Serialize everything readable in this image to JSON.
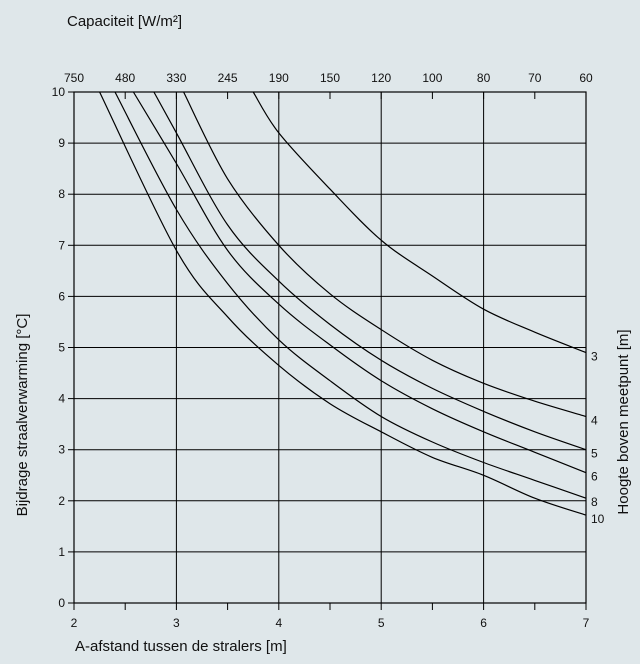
{
  "chart_data": {
    "type": "line",
    "title": "Capaciteit [W/m²]",
    "xlabel": "A-afstand tussen de stralers [m]",
    "ylabel": "Bijdrage straalverwarming [°C]",
    "ylabel_right": "Hoogte boven meetpunt [m]",
    "xlim": [
      2,
      7
    ],
    "ylim": [
      0,
      10
    ],
    "x_ticks": [
      "2",
      "3",
      "4",
      "5",
      "6",
      "7"
    ],
    "y_ticks": [
      "0",
      "1",
      "2",
      "3",
      "4",
      "5",
      "6",
      "7",
      "8",
      "9",
      "10"
    ],
    "top_axis": {
      "ticks": [
        {
          "label": "750",
          "x": 2.0
        },
        {
          "label": "480",
          "x": 2.5
        },
        {
          "label": "330",
          "x": 3.0
        },
        {
          "label": "245",
          "x": 3.5
        },
        {
          "label": "190",
          "x": 4.0
        },
        {
          "label": "150",
          "x": 4.5
        },
        {
          "label": "120",
          "x": 5.0
        },
        {
          "label": "100",
          "x": 5.5
        },
        {
          "label": "80",
          "x": 6.0
        },
        {
          "label": "70",
          "x": 6.5
        },
        {
          "label": "60",
          "x": 7.0
        }
      ]
    },
    "grid": true,
    "series": [
      {
        "name": "3",
        "x": [
          3.75,
          4.0,
          4.5,
          5.0,
          5.5,
          6.0,
          6.5,
          7.0
        ],
        "y": [
          10.0,
          9.2,
          8.1,
          7.1,
          6.4,
          5.75,
          5.3,
          4.9
        ]
      },
      {
        "name": "4",
        "x": [
          3.07,
          3.5,
          4.0,
          4.5,
          5.0,
          5.5,
          6.0,
          6.5,
          7.0
        ],
        "y": [
          10.0,
          8.3,
          7.0,
          6.05,
          5.35,
          4.75,
          4.3,
          3.95,
          3.65
        ]
      },
      {
        "name": "5",
        "x": [
          2.78,
          3.0,
          3.5,
          4.0,
          4.5,
          5.0,
          5.5,
          6.0,
          6.5,
          7.0
        ],
        "y": [
          10.0,
          9.2,
          7.4,
          6.3,
          5.45,
          4.75,
          4.2,
          3.75,
          3.35,
          3.0
        ]
      },
      {
        "name": "6",
        "x": [
          2.58,
          3.0,
          3.5,
          4.0,
          4.5,
          5.0,
          5.5,
          6.0,
          6.5,
          7.0
        ],
        "y": [
          10.0,
          8.6,
          6.9,
          5.85,
          5.05,
          4.35,
          3.8,
          3.35,
          2.95,
          2.55
        ]
      },
      {
        "name": "8",
        "x": [
          2.4,
          3.0,
          3.5,
          4.0,
          4.5,
          5.0,
          5.5,
          6.0,
          6.5,
          7.0
        ],
        "y": [
          10.0,
          7.7,
          6.25,
          5.15,
          4.35,
          3.65,
          3.15,
          2.75,
          2.4,
          2.05
        ]
      },
      {
        "name": "10",
        "x": [
          2.25,
          3.0,
          3.5,
          4.0,
          4.5,
          5.0,
          5.5,
          6.0,
          6.5,
          7.0
        ],
        "y": [
          10.0,
          6.9,
          5.6,
          4.65,
          3.9,
          3.35,
          2.85,
          2.5,
          2.05,
          1.72
        ]
      }
    ]
  }
}
